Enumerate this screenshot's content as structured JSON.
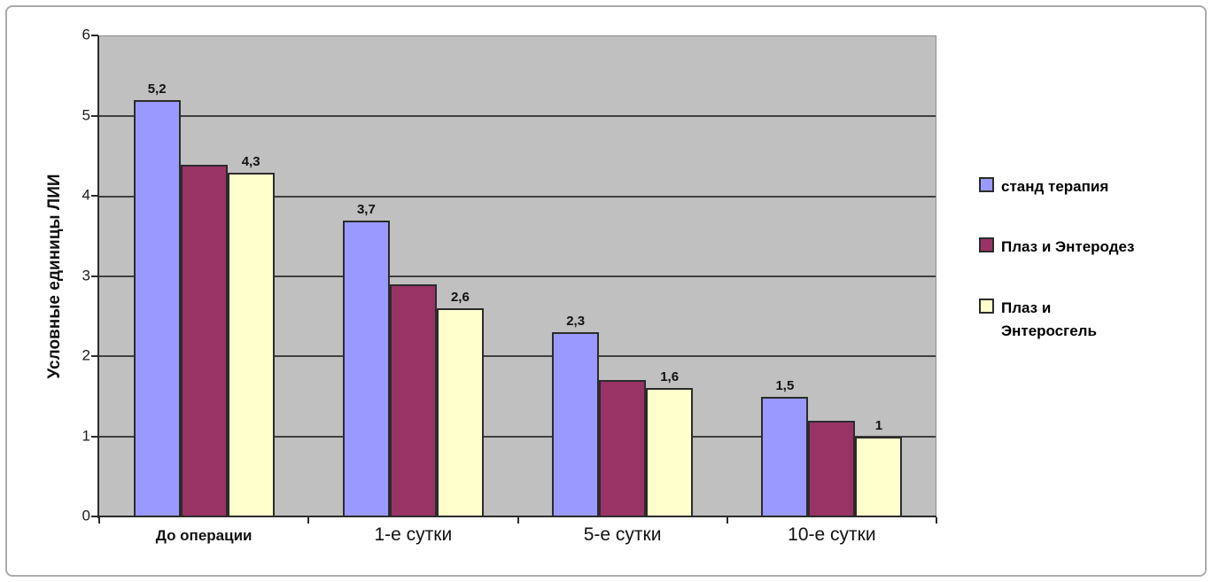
{
  "chart_data": {
    "type": "bar",
    "title": "",
    "xlabel": "",
    "ylabel": "Условные единицы ЛИИ",
    "ylim": [
      0,
      6
    ],
    "ytick_step": 1,
    "yticks": [
      "0",
      "1",
      "2",
      "3",
      "4",
      "5",
      "6"
    ],
    "grid": "horizontal",
    "legend_position": "right",
    "categories": [
      "До операции",
      "1-е сутки",
      "5-е сутки",
      "10-е сутки"
    ],
    "series": [
      {
        "name": "станд терапия",
        "color": "#9999FF",
        "values": [
          5.2,
          3.7,
          2.3,
          1.5
        ],
        "labels": [
          "5,2",
          "3,7",
          "2,3",
          "1,5"
        ]
      },
      {
        "name": "Плаз и Энтеродез",
        "color": "#993366",
        "values": [
          4.4,
          2.9,
          1.7,
          1.2
        ],
        "labels": [
          "",
          "",
          "",
          ""
        ]
      },
      {
        "name": "Плаз и Энтеросгель",
        "color": "#FFFFCC",
        "values": [
          4.3,
          2.6,
          1.6,
          1.0
        ],
        "labels": [
          "4,3",
          "2,6",
          "1,6",
          "1"
        ]
      }
    ],
    "colors": {
      "plot_bg": "#C0C0C0",
      "gridline": "#404040",
      "axis": "#2b2b2b",
      "bar_border": "#2b2b2b",
      "frame_border": "#ababab"
    }
  }
}
